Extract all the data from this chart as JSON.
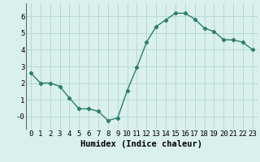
{
  "x": [
    0,
    1,
    2,
    3,
    4,
    5,
    6,
    7,
    8,
    9,
    10,
    11,
    12,
    13,
    14,
    15,
    16,
    17,
    18,
    19,
    20,
    21,
    22,
    23
  ],
  "y": [
    2.6,
    2.0,
    2.0,
    1.8,
    1.1,
    0.45,
    0.45,
    0.3,
    -0.25,
    -0.1,
    1.55,
    2.95,
    4.45,
    5.4,
    5.8,
    6.2,
    6.2,
    5.85,
    5.3,
    5.1,
    4.6,
    4.6,
    4.45,
    4.0
  ],
  "xlabel": "Humidex (Indice chaleur)",
  "xlim": [
    -0.5,
    23.5
  ],
  "ylim": [
    -0.8,
    6.8
  ],
  "yticks": [
    0,
    1,
    2,
    3,
    4,
    5,
    6
  ],
  "ytick_labels": [
    "-0",
    "1",
    "2",
    "3",
    "4",
    "5",
    "6"
  ],
  "xticks": [
    0,
    1,
    2,
    3,
    4,
    5,
    6,
    7,
    8,
    9,
    10,
    11,
    12,
    13,
    14,
    15,
    16,
    17,
    18,
    19,
    20,
    21,
    22,
    23
  ],
  "line_color": "#2e7d6e",
  "marker": "D",
  "marker_size": 2.2,
  "bg_color": "#daf0ed",
  "grid_color": "#b8d8d4",
  "tick_label_fontsize": 6.5,
  "xlabel_fontsize": 7.5,
  "line_width": 1.0
}
